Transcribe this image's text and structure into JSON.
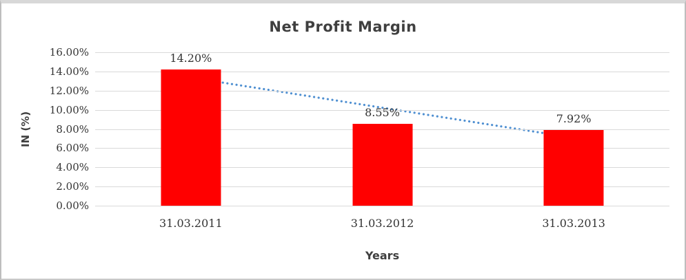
{
  "chart_data": {
    "type": "bar",
    "title": "Net Profit Margin",
    "xlabel": "Years",
    "ylabel": "IN (%)",
    "categories": [
      "31.03.2011",
      "31.03.2012",
      "31.03.2013"
    ],
    "values": [
      14.2,
      8.55,
      7.92
    ],
    "data_labels": [
      "14.20%",
      "8.55%",
      "7.92%"
    ],
    "ylim": [
      0,
      16
    ],
    "ytick_step": 2,
    "ytick_labels_top_down": [
      "16.00%",
      "14.00%",
      "12.00%",
      "10.00%",
      "8.00%",
      "6.00%",
      "4.00%",
      "2.00%",
      "0.00%"
    ],
    "grid": true,
    "legend": "none",
    "bar_color": "#ff0000",
    "gridline_color": "#d9d9d9",
    "text_color": "#3f3f3f",
    "trendline": {
      "type": "linear",
      "style": "dotted",
      "color": "#4e8fd1",
      "start_value": 13.36,
      "end_value": 7.08
    }
  }
}
